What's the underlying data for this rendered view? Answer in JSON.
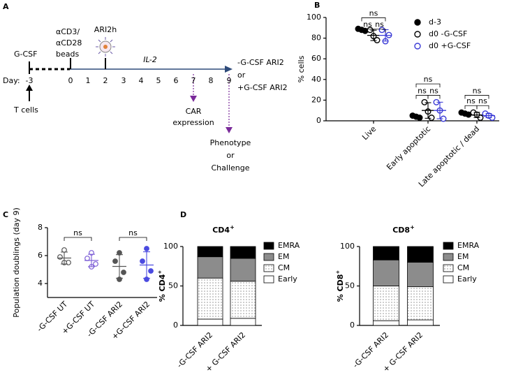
{
  "panel_labels": [
    "A",
    "B",
    "C",
    "D"
  ],
  "diagram": {
    "gcsf": "G-CSF",
    "beads": [
      "αCD3/",
      "αCD28",
      "beads"
    ],
    "ari2h": "ARI2h",
    "il2": "IL-2",
    "day_label": "Day:",
    "days": [
      "-3",
      "0",
      "1",
      "2",
      "3",
      "4",
      "5",
      "6",
      "7",
      "8",
      "9"
    ],
    "t_cells": "T cells",
    "outcome": [
      "-G-CSF ARI2",
      "or",
      "+G-CSF ARI2"
    ],
    "car": [
      "CAR",
      "expression"
    ],
    "phenotype": [
      "Phenotype",
      "or",
      "Challenge"
    ]
  },
  "chart_data": [
    {
      "type": "dot_series",
      "ylabel": "% cells",
      "categories": [
        "Live",
        "Early apoptotic",
        "Late apoptotic / dead"
      ],
      "series": [
        {
          "name": "d-3",
          "color": "#000000",
          "filled": true,
          "values": [
            [
              89,
              87,
              88
            ],
            [
              5,
              3,
              4
            ],
            [
              8,
              6,
              7
            ]
          ]
        },
        {
          "name": "d0 -G-CSF",
          "color": "#000000",
          "filled": false,
          "values": [
            [
              88,
              78,
              82
            ],
            [
              18,
              3,
              9
            ],
            [
              8,
              3,
              6
            ]
          ]
        },
        {
          "name": "d0 +G-CSF",
          "color": "#3a3ad6",
          "filled": false,
          "values": [
            [
              88,
              83,
              77
            ],
            [
              18,
              2,
              10
            ],
            [
              7,
              3,
              5
            ]
          ]
        }
      ],
      "ylim": [
        0,
        100
      ],
      "yticks": [
        0,
        20,
        40,
        60,
        80,
        100
      ],
      "annotations": [
        "ns",
        "ns",
        "ns",
        "ns",
        "ns",
        "ns",
        "ns",
        "ns",
        "ns"
      ]
    },
    {
      "type": "dot_groups",
      "ylabel": "Population doublings (day 9)",
      "categories": [
        "-G-CSF UT",
        "+G-CSF UT",
        "-G-CSF ARI2",
        "+G-CSF ARI2"
      ],
      "colors": [
        "#555555",
        "#7d5fd6",
        "#555555",
        "#4b4be0"
      ],
      "filled": [
        false,
        false,
        true,
        true
      ],
      "values": [
        [
          6.4,
          5.9,
          5.5,
          5.5
        ],
        [
          6.2,
          5.8,
          5.4,
          5.2
        ],
        [
          6.2,
          5.6,
          4.8,
          4.3
        ],
        [
          6.5,
          5.6,
          4.9,
          4.3
        ]
      ],
      "ylim": [
        3,
        8
      ],
      "yticks": [
        4,
        6,
        8
      ],
      "annotations": [
        "ns",
        "ns"
      ]
    },
    {
      "type": "stacked_bar",
      "title": "CD4",
      "title_sup": "+",
      "ylabel": "% CD4",
      "ylabel_sup": "+",
      "categories": [
        "-G-CSF ARI2",
        "+ G-CSF ARI2"
      ],
      "series": [
        {
          "name": "Early",
          "color": "#ffffff",
          "pattern": false,
          "values": [
            8,
            9
          ]
        },
        {
          "name": "CM",
          "color": "#ffffff",
          "pattern": true,
          "values": [
            52,
            47
          ]
        },
        {
          "name": "EM",
          "color": "#8c8c8c",
          "pattern": false,
          "values": [
            27,
            29
          ]
        },
        {
          "name": "EMRA",
          "color": "#000000",
          "pattern": false,
          "values": [
            13,
            15
          ]
        }
      ],
      "ylim": [
        0,
        100
      ],
      "yticks": [
        0,
        50,
        100
      ]
    },
    {
      "type": "stacked_bar",
      "title": "CD8",
      "title_sup": "+",
      "ylabel": "% CD8",
      "ylabel_sup": "+",
      "categories": [
        "-G-CSF ARI2",
        "+ G-CSF ARI2"
      ],
      "series": [
        {
          "name": "Early",
          "color": "#ffffff",
          "pattern": false,
          "values": [
            6,
            7
          ]
        },
        {
          "name": "CM",
          "color": "#ffffff",
          "pattern": true,
          "values": [
            44,
            42
          ]
        },
        {
          "name": "EM",
          "color": "#8c8c8c",
          "pattern": false,
          "values": [
            33,
            31
          ]
        },
        {
          "name": "EMRA",
          "color": "#000000",
          "pattern": false,
          "values": [
            17,
            20
          ]
        }
      ],
      "ylim": [
        0,
        100
      ],
      "yticks": [
        0,
        50,
        100
      ]
    }
  ]
}
